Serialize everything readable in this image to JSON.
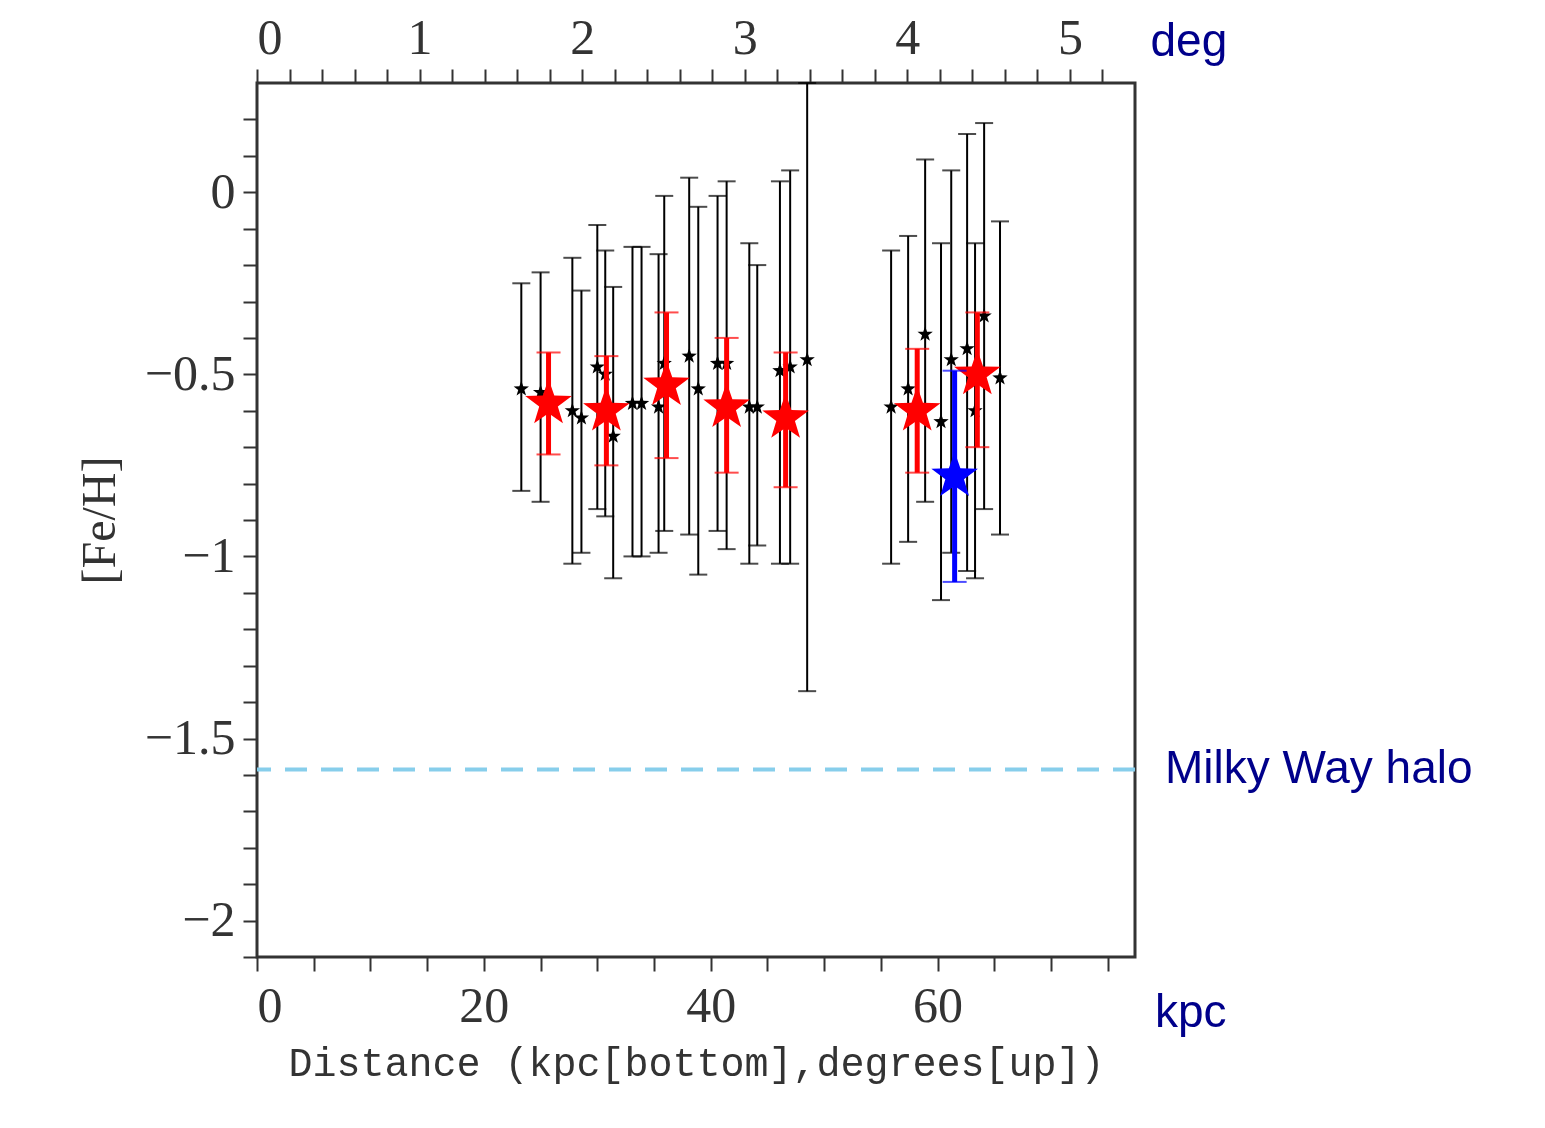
{
  "chart_data": {
    "type": "scatter",
    "xlabel": "Distance (kpc[bottom],degrees[up])",
    "ylabel": "[Fe/H]",
    "x2label": "deg",
    "annotations": [
      "kpc"
    ],
    "xlim": [
      0,
      77.4
    ],
    "xticks": [
      0,
      {
        "value": 5,
        "label": null
      },
      {
        "value": 10,
        "label": null
      },
      {
        "value": 15,
        "label": null
      },
      20,
      {
        "value": 25,
        "label": null
      },
      {
        "value": 30,
        "label": null
      },
      {
        "value": 35,
        "label": null
      },
      40,
      {
        "value": 45,
        "label": null
      },
      {
        "value": 50,
        "label": null
      },
      {
        "value": 55,
        "label": null
      },
      60,
      {
        "value": 65,
        "label": null
      },
      {
        "value": 70,
        "label": null
      },
      {
        "value": 75,
        "label": null
      }
    ],
    "x2lim": [
      0,
      5.4
    ],
    "x2ticks": [
      0,
      {
        "value": 0.2,
        "label": null
      },
      {
        "value": 0.4,
        "label": null
      },
      {
        "value": 0.6,
        "label": null
      },
      {
        "value": 0.8,
        "label": null
      },
      1,
      {
        "value": 1.2,
        "label": null
      },
      {
        "value": 1.4,
        "label": null
      },
      {
        "value": 1.6,
        "label": null
      },
      {
        "value": 1.8,
        "label": null
      },
      2,
      {
        "value": 2.2,
        "label": null
      },
      {
        "value": 2.4,
        "label": null
      },
      {
        "value": 2.6,
        "label": null
      },
      {
        "value": 2.8,
        "label": null
      },
      3,
      {
        "value": 3.2,
        "label": null
      },
      {
        "value": 3.4,
        "label": null
      },
      {
        "value": 3.6,
        "label": null
      },
      {
        "value": 3.8,
        "label": null
      },
      4,
      {
        "value": 4.2,
        "label": null
      },
      {
        "value": 4.4,
        "label": null
      },
      {
        "value": 4.6,
        "label": null
      },
      {
        "value": 4.8,
        "label": null
      },
      5,
      {
        "value": 5.2,
        "label": null
      }
    ],
    "ylim": [
      -2.1,
      0.3
    ],
    "yticks": [
      {
        "value": -2.1,
        "label": null
      },
      -2,
      {
        "value": -1.9,
        "label": null
      },
      {
        "value": -1.8,
        "label": null
      },
      {
        "value": -1.7,
        "label": null
      },
      {
        "value": -1.6,
        "label": null
      },
      -1.5,
      {
        "value": -1.4,
        "label": null
      },
      {
        "value": -1.3,
        "label": null
      },
      {
        "value": -1.2,
        "label": null
      },
      {
        "value": -1.1,
        "label": null
      },
      -1,
      {
        "value": -0.9,
        "label": null
      },
      {
        "value": -0.8,
        "label": null
      },
      {
        "value": -0.7,
        "label": null
      },
      {
        "value": -0.6,
        "label": null
      },
      -0.5,
      {
        "value": -0.4,
        "label": null
      },
      {
        "value": -0.3,
        "label": null
      },
      {
        "value": -0.2,
        "label": null
      },
      {
        "value": -0.1,
        "label": null
      },
      0,
      {
        "value": 0.1,
        "label": null
      },
      {
        "value": 0.2,
        "label": null
      }
    ],
    "grid": false,
    "marker": "star",
    "ref_lines": [
      {
        "axis": "y",
        "value": -1.585,
        "label": "Milky Way halo",
        "color": "#87ceeb",
        "line_style": "dashed"
      }
    ],
    "series": [
      {
        "color": "#000000",
        "x": [
          23.3,
          25.0,
          27.8,
          28.6,
          30.0,
          30.7,
          31.4,
          33.1,
          33.9,
          35.4,
          35.9,
          38.1,
          38.9,
          40.6,
          41.4,
          43.4,
          44.1,
          46.1,
          47.0,
          48.5,
          55.9,
          57.4,
          58.9,
          60.3,
          61.2,
          62.6,
          63.3,
          64.1,
          65.5
        ],
        "values": [
          -0.54,
          -0.55,
          -0.6,
          -0.62,
          -0.48,
          -0.5,
          -0.67,
          -0.58,
          -0.58,
          -0.59,
          -0.47,
          -0.45,
          -0.54,
          -0.47,
          -0.47,
          -0.59,
          -0.59,
          -0.49,
          -0.48,
          -0.46,
          -0.59,
          -0.54,
          -0.39,
          -0.63,
          -0.46,
          -0.43,
          -0.6,
          -0.34,
          -0.51
        ],
        "errors": [
          [
            -0.82,
            -0.25
          ],
          [
            -0.85,
            -0.22
          ],
          [
            -1.02,
            -0.18
          ],
          [
            -0.99,
            -0.27
          ],
          [
            -0.87,
            -0.09
          ],
          [
            -0.89,
            -0.16
          ],
          [
            -1.06,
            -0.26
          ],
          [
            -1.0,
            -0.15
          ],
          [
            -1.0,
            -0.15
          ],
          [
            -0.99,
            -0.17
          ],
          [
            -0.93,
            -0.01
          ],
          [
            -0.94,
            0.04
          ],
          [
            -1.05,
            -0.04
          ],
          [
            -0.93,
            -0.01
          ],
          [
            -0.98,
            0.03
          ],
          [
            -1.02,
            -0.14
          ],
          [
            -0.97,
            -0.2
          ],
          [
            -1.02,
            0.03
          ],
          [
            -1.02,
            0.06
          ],
          [
            -1.37,
            0.3
          ],
          [
            -1.02,
            -0.16
          ],
          [
            -0.96,
            -0.12
          ],
          [
            -0.85,
            0.09
          ],
          [
            -1.12,
            -0.14
          ],
          [
            -0.99,
            0.06
          ],
          [
            -1.04,
            0.16
          ],
          [
            -1.06,
            -0.14
          ],
          [
            -0.87,
            0.19
          ],
          [
            -0.94,
            -0.08
          ]
        ]
      },
      {
        "color": "#ff0000",
        "x": [
          25.7,
          30.8,
          36.1,
          41.4,
          46.6,
          58.2,
          63.5
        ],
        "values": [
          -0.58,
          -0.6,
          -0.53,
          -0.59,
          -0.62,
          -0.6,
          -0.5
        ],
        "errors": [
          [
            -0.72,
            -0.44
          ],
          [
            -0.75,
            -0.45
          ],
          [
            -0.73,
            -0.33
          ],
          [
            -0.77,
            -0.4
          ],
          [
            -0.81,
            -0.44
          ],
          [
            -0.77,
            -0.43
          ],
          [
            -0.7,
            -0.33
          ]
        ]
      },
      {
        "color": "#0000ff",
        "x": [
          61.5
        ],
        "values": [
          -0.78
        ],
        "errors": [
          [
            -1.07,
            -0.49
          ]
        ]
      }
    ]
  }
}
